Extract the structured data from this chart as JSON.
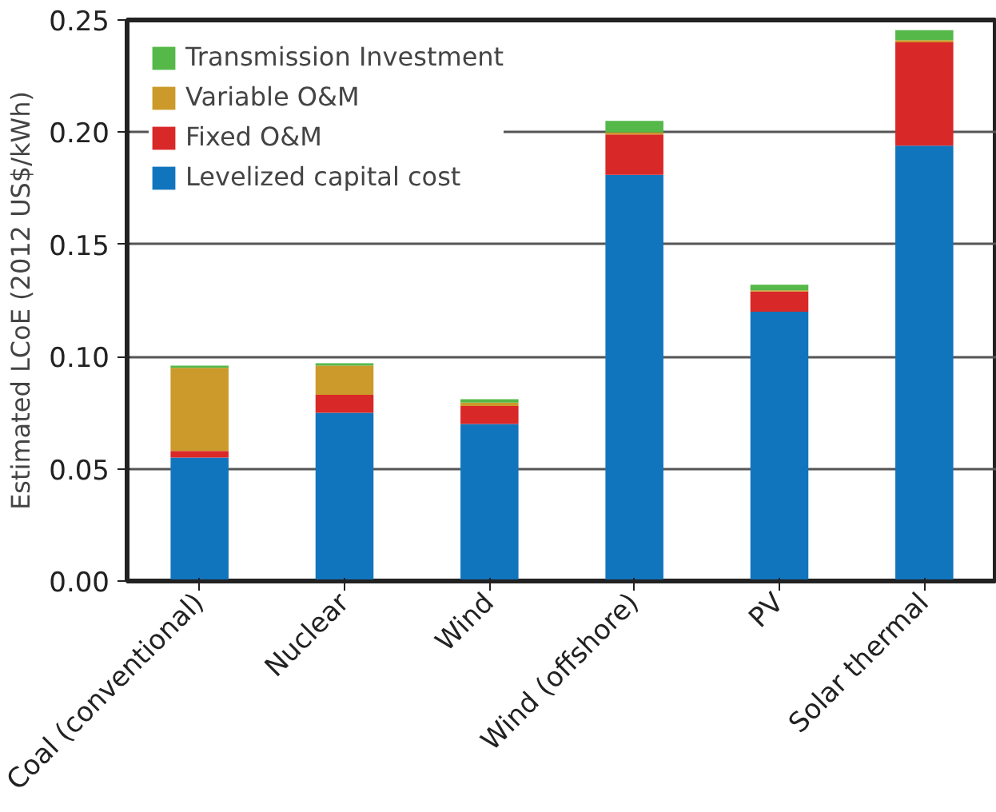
{
  "chart_data": {
    "type": "bar",
    "stacked": true,
    "ylabel": "Estimated LCoE (2012 US$/kWh)",
    "categories": [
      "Coal (conventional)",
      "Nuclear",
      "Wind",
      "Wind (offshore)",
      "PV",
      "Solar thermal"
    ],
    "series": [
      {
        "name": "Levelized capital cost",
        "color": "#1175bd",
        "values": [
          0.055,
          0.075,
          0.07,
          0.181,
          0.12,
          0.194
        ]
      },
      {
        "name": "Fixed O&M",
        "color": "#d92828",
        "values": [
          0.003,
          0.008,
          0.008,
          0.018,
          0.009,
          0.046
        ]
      },
      {
        "name": "Variable O&M",
        "color": "#cc9a2a",
        "values": [
          0.037,
          0.013,
          0.0015,
          0.001,
          0.0005,
          0.001
        ]
      },
      {
        "name": "Transmission Investment",
        "color": "#55b848",
        "values": [
          0.001,
          0.001,
          0.0015,
          0.005,
          0.0025,
          0.0045
        ]
      }
    ],
    "ylim": [
      0,
      0.25
    ],
    "yticks": [
      {
        "value": 0,
        "label": "0.00"
      },
      {
        "value": 0.05,
        "label": "0.05"
      },
      {
        "value": 0.1,
        "label": "0.10"
      },
      {
        "value": 0.15,
        "label": "0.15"
      },
      {
        "value": 0.2,
        "label": "0.20"
      },
      0.25
    ],
    "grid": "y",
    "legend": "top left"
  }
}
